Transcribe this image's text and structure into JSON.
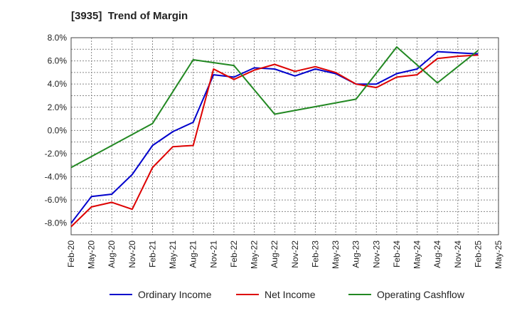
{
  "chart_data": {
    "type": "line",
    "title": "[3935]  Trend of Margin",
    "xlabel": "",
    "ylabel": "",
    "categories": [
      "Feb-20",
      "May-20",
      "Aug-20",
      "Nov-20",
      "Feb-21",
      "May-21",
      "Aug-21",
      "Nov-21",
      "Feb-22",
      "May-22",
      "Aug-22",
      "Nov-22",
      "Feb-23",
      "May-23",
      "Aug-23",
      "Nov-23",
      "Feb-24",
      "May-24",
      "Aug-24",
      "Nov-24",
      "Feb-25",
      "May-25"
    ],
    "y_ticks": [
      "8.0%",
      "6.0%",
      "4.0%",
      "2.0%",
      "0.0%",
      "-2.0%",
      "-4.0%",
      "-6.0%",
      "-8.0%"
    ],
    "ylim": [
      -9.0,
      8.0
    ],
    "grid": true,
    "legend_position": "bottom",
    "series": [
      {
        "name": "Ordinary Income",
        "color": "#0000cc",
        "values": [
          -8.0,
          -5.7,
          -5.5,
          -3.8,
          -1.3,
          -0.1,
          0.7,
          4.8,
          4.6,
          5.4,
          5.3,
          4.7,
          5.3,
          4.9,
          4.0,
          4.0,
          4.9,
          5.3,
          6.8,
          6.7,
          6.6,
          null
        ]
      },
      {
        "name": "Net Income",
        "color": "#dd0000",
        "values": [
          -8.3,
          -6.6,
          -6.2,
          -6.8,
          -3.2,
          -1.4,
          -1.3,
          5.3,
          4.4,
          5.2,
          5.7,
          5.1,
          5.5,
          5.0,
          4.0,
          3.7,
          4.6,
          4.8,
          6.2,
          6.4,
          6.5,
          null
        ]
      },
      {
        "name": "Operating Cashflow",
        "color": "#228822",
        "values": [
          -3.2,
          null,
          null,
          null,
          0.6,
          null,
          6.1,
          null,
          5.6,
          null,
          1.4,
          null,
          null,
          null,
          2.7,
          null,
          7.2,
          null,
          4.1,
          null,
          6.9,
          null
        ]
      }
    ]
  }
}
